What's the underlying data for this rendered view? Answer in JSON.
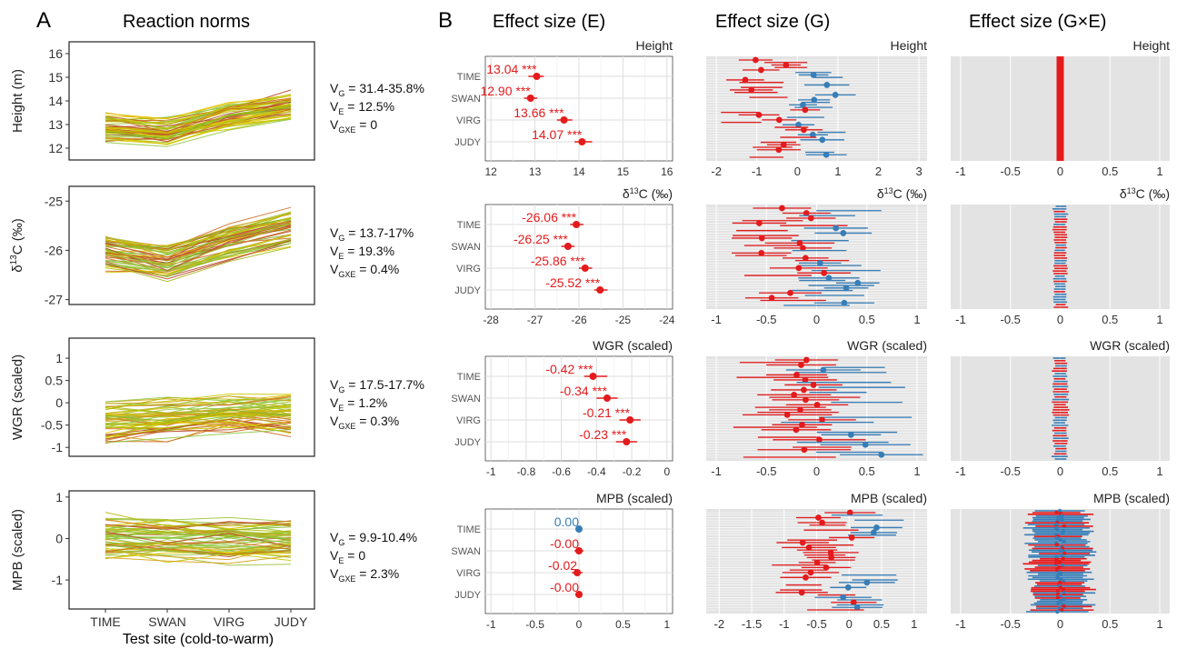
{
  "figure": {
    "panel_a_letter": "A",
    "panel_b_letter": "B",
    "panel_a_title": "Reaction norms",
    "col_e_title": "Effect size (E)",
    "col_g_title": "Effect size (G)",
    "col_gxe_title": "Effect size (G×E)",
    "x_axis_title": "Test site (cold-to-warm)"
  },
  "colors": {
    "red": "#e41a1c",
    "blue": "#377eb8",
    "panel_gray": "#e3e3e3",
    "grid_white": "#ffffff",
    "grid_light": "#dedede"
  },
  "sites": [
    "TIME",
    "SWAN",
    "VIRG",
    "JUDY"
  ],
  "traits": [
    {
      "key": "height",
      "strip_label": "Height",
      "a_ylabel": "Height (m)",
      "a_yticks": [
        12,
        13,
        14,
        15,
        16
      ],
      "a_ylim": [
        11.5,
        16.5
      ],
      "a_center": [
        12.9,
        12.7,
        13.4,
        13.8
      ],
      "a_spread": 0.55,
      "variance": [
        {
          "sym": "V",
          "sub": "G",
          "text": " = 31.4-35.8%"
        },
        {
          "sym": "V",
          "sub": "E",
          "text": " = 12.5%"
        },
        {
          "sym": "V",
          "sub": "GXE",
          "text": " = 0"
        }
      ]
    },
    {
      "key": "d13c",
      "strip_label": "13C (‰)",
      "a_ylabel": "13C (‰)",
      "a_yticks": [
        -25,
        -26,
        -27
      ],
      "a_ylim": [
        -27.1,
        -24.7
      ],
      "a_center": [
        -26.05,
        -26.25,
        -25.85,
        -25.55
      ],
      "a_spread": 0.3,
      "variance": [
        {
          "sym": "V",
          "sub": "G",
          "text": " = 13.7-17%"
        },
        {
          "sym": "V",
          "sub": "E",
          "text": " = 19.3%"
        },
        {
          "sym": "V",
          "sub": "GXE",
          "text": " = 0.4%"
        }
      ]
    },
    {
      "key": "wgr",
      "strip_label": "WGR (scaled)",
      "a_ylabel": "WGR (scaled)",
      "a_yticks": [
        1.0,
        0.5,
        0.0,
        -0.5,
        -1.0
      ],
      "a_ylim": [
        -1.2,
        1.45
      ],
      "a_center": [
        -0.42,
        -0.34,
        -0.21,
        -0.23
      ],
      "a_spread": 0.4,
      "variance": [
        {
          "sym": "V",
          "sub": "G",
          "text": " = 17.5-17.7%"
        },
        {
          "sym": "V",
          "sub": "E",
          "text": " = 1.2%"
        },
        {
          "sym": "V",
          "sub": "GXE",
          "text": " = 0.3%"
        }
      ]
    },
    {
      "key": "mpb",
      "strip_label": "MPB (scaled)",
      "a_ylabel": "MPB (scaled)",
      "a_yticks": [
        1,
        0,
        -1
      ],
      "a_ylim": [
        -1.7,
        1.15
      ],
      "a_center": [
        0.0,
        0.0,
        -0.02,
        0.0
      ],
      "a_spread": 0.45,
      "variance": [
        {
          "sym": "V",
          "sub": "G",
          "text": " = 9.9-10.4%"
        },
        {
          "sym": "V",
          "sub": "E",
          "text": " = 0"
        },
        {
          "sym": "V",
          "sub": "GXE",
          "text": " = 2.3%"
        }
      ]
    }
  ],
  "chart_data": [
    {
      "type": "line",
      "title": "Reaction norms",
      "panels": [
        {
          "trait": "Height",
          "ylabel": "Height (m)",
          "x": [
            "TIME",
            "SWAN",
            "VIRG",
            "JUDY"
          ],
          "ylim": [
            11.5,
            16.5
          ],
          "family_mean_approx": [
            12.9,
            12.7,
            13.4,
            13.8
          ]
        },
        {
          "trait": "δ13C (‰)",
          "ylabel": "δ13C (‰)",
          "x": [
            "TIME",
            "SWAN",
            "VIRG",
            "JUDY"
          ],
          "ylim": [
            -27.1,
            -24.7
          ],
          "family_mean_approx": [
            -26.05,
            -26.25,
            -25.85,
            -25.55
          ]
        },
        {
          "trait": "WGR (scaled)",
          "ylabel": "WGR (scaled)",
          "x": [
            "TIME",
            "SWAN",
            "VIRG",
            "JUDY"
          ],
          "ylim": [
            -1.2,
            1.45
          ],
          "family_mean_approx": [
            -0.42,
            -0.34,
            -0.21,
            -0.23
          ]
        },
        {
          "trait": "MPB (scaled)",
          "ylabel": "MPB (scaled)",
          "x": [
            "TIME",
            "SWAN",
            "VIRG",
            "JUDY"
          ],
          "ylim": [
            -1.7,
            1.15
          ],
          "family_mean_approx": [
            0.0,
            0.0,
            -0.02,
            0.0
          ]
        }
      ],
      "xlabel": "Test site (cold-to-warm)"
    },
    {
      "type": "scatter",
      "title": "Effect size (E)",
      "panels": [
        {
          "trait": "Height",
          "xlim": [
            12,
            16
          ],
          "xticks": [
            12,
            13,
            14,
            15,
            16
          ],
          "points": [
            {
              "site": "TIME",
              "value": 13.04,
              "ci": [
                12.85,
                13.2
              ],
              "label": "13.04 ***",
              "color": "red"
            },
            {
              "site": "SWAN",
              "value": 12.9,
              "ci": [
                12.75,
                13.05
              ],
              "label": "12.90 ***",
              "color": "red"
            },
            {
              "site": "VIRG",
              "value": 13.66,
              "ci": [
                13.5,
                13.85
              ],
              "label": "13.66 ***",
              "color": "red"
            },
            {
              "site": "JUDY",
              "value": 14.07,
              "ci": [
                13.9,
                14.3
              ],
              "label": "14.07 ***",
              "color": "red"
            }
          ]
        },
        {
          "trait": "δ13C (‰)",
          "xlim": [
            -28,
            -24
          ],
          "xticks": [
            -28,
            -27,
            -26,
            -25,
            -24
          ],
          "points": [
            {
              "site": "TIME",
              "value": -26.06,
              "ci": [
                -26.2,
                -25.9
              ],
              "label": "-26.06 ***",
              "color": "red"
            },
            {
              "site": "SWAN",
              "value": -26.25,
              "ci": [
                -26.4,
                -26.1
              ],
              "label": "-26.25 ***",
              "color": "red"
            },
            {
              "site": "VIRG",
              "value": -25.86,
              "ci": [
                -26.0,
                -25.7
              ],
              "label": "-25.86 ***",
              "color": "red"
            },
            {
              "site": "JUDY",
              "value": -25.52,
              "ci": [
                -25.65,
                -25.35
              ],
              "label": "-25.52 ***",
              "color": "red"
            }
          ]
        },
        {
          "trait": "WGR (scaled)",
          "xlim": [
            -1,
            0
          ],
          "xticks": [
            -1,
            -0.8,
            -0.6,
            -0.4,
            -0.2,
            0
          ],
          "points": [
            {
              "site": "TIME",
              "value": -0.42,
              "ci": [
                -0.47,
                -0.34
              ],
              "label": "-0.42 ***",
              "color": "red"
            },
            {
              "site": "SWAN",
              "value": -0.34,
              "ci": [
                -0.4,
                -0.28
              ],
              "label": "-0.34 ***",
              "color": "red"
            },
            {
              "site": "VIRG",
              "value": -0.21,
              "ci": [
                -0.27,
                -0.15
              ],
              "label": "-0.21 ***",
              "color": "red"
            },
            {
              "site": "JUDY",
              "value": -0.23,
              "ci": [
                -0.29,
                -0.17
              ],
              "label": "-0.23 ***",
              "color": "red"
            }
          ]
        },
        {
          "trait": "MPB (scaled)",
          "xlim": [
            -1,
            1
          ],
          "xticks": [
            -1,
            -0.5,
            0,
            0.5,
            1
          ],
          "points": [
            {
              "site": "TIME",
              "value": 0.0,
              "ci": [
                -0.02,
                0.02
              ],
              "label": "0.00",
              "color": "blue"
            },
            {
              "site": "SWAN",
              "value": 0.0,
              "ci": [
                -0.05,
                0.05
              ],
              "label": "-0.00",
              "color": "red"
            },
            {
              "site": "VIRG",
              "value": -0.02,
              "ci": [
                -0.08,
                0.04
              ],
              "label": "-0.02",
              "color": "red"
            },
            {
              "site": "JUDY",
              "value": 0.0,
              "ci": [
                -0.04,
                0.04
              ],
              "label": "-0.00",
              "color": "red"
            }
          ]
        }
      ]
    },
    {
      "type": "scatter",
      "title": "Effect size (G)",
      "panels": [
        {
          "trait": "Height",
          "xlim": [
            -2.25,
            3.2
          ],
          "xticks": [
            -2,
            -1,
            0,
            1,
            2,
            3
          ],
          "n_families": 40,
          "seed": 11,
          "red_range": [
            -1.5,
            0.2
          ],
          "blue_range": [
            0.0,
            1.0
          ],
          "halfwidth": 0.45
        },
        {
          "trait": "δ13C (‰)",
          "xlim": [
            -1.1,
            1.1
          ],
          "xticks": [
            -1,
            -0.5,
            0,
            0.5,
            1
          ],
          "n_families": 40,
          "seed": 23,
          "red_range": [
            -0.6,
            0.1
          ],
          "blue_range": [
            0.0,
            0.45
          ],
          "halfwidth": 0.28
        },
        {
          "trait": "WGR (scaled)",
          "xlim": [
            -1.1,
            1.1
          ],
          "xticks": [
            -1,
            -0.5,
            0,
            0.5,
            1
          ],
          "n_families": 40,
          "seed": 37,
          "red_range": [
            -0.45,
            0.1
          ],
          "blue_range": [
            0.0,
            0.65
          ],
          "halfwidth": 0.38
        },
        {
          "trait": "MPB (scaled)",
          "xlim": [
            -2.2,
            1.2
          ],
          "xticks": [
            -2,
            -1.5,
            -1,
            -0.5,
            0,
            0.5,
            1
          ],
          "n_families": 40,
          "seed": 51,
          "red_range": [
            -0.8,
            0.1
          ],
          "blue_range": [
            -0.1,
            0.5
          ],
          "halfwidth": 0.35
        }
      ]
    },
    {
      "type": "scatter",
      "title": "Effect size (G×E)",
      "panels": [
        {
          "trait": "Height",
          "xlim": [
            -1.1,
            1.1
          ],
          "xticks": [
            -1,
            -0.5,
            0,
            0.5,
            1
          ],
          "n_rows": 0,
          "seed": 5,
          "halfwidth": 0.0
        },
        {
          "trait": "δ13C (‰)",
          "xlim": [
            -1.1,
            1.1
          ],
          "xticks": [
            -1,
            -0.5,
            0,
            0.5,
            1
          ],
          "n_rows": 40,
          "seed": 7,
          "halfwidth": 0.06
        },
        {
          "trait": "WGR (scaled)",
          "xlim": [
            -1.1,
            1.1
          ],
          "xticks": [
            -1,
            -0.5,
            0,
            0.5,
            1
          ],
          "n_rows": 40,
          "seed": 9,
          "halfwidth": 0.07
        },
        {
          "trait": "MPB (scaled)",
          "xlim": [
            -1.1,
            1.1
          ],
          "xticks": [
            -1,
            -0.5,
            0,
            0.5,
            1
          ],
          "n_rows": 60,
          "seed": 13,
          "halfwidth": 0.28
        }
      ]
    }
  ]
}
